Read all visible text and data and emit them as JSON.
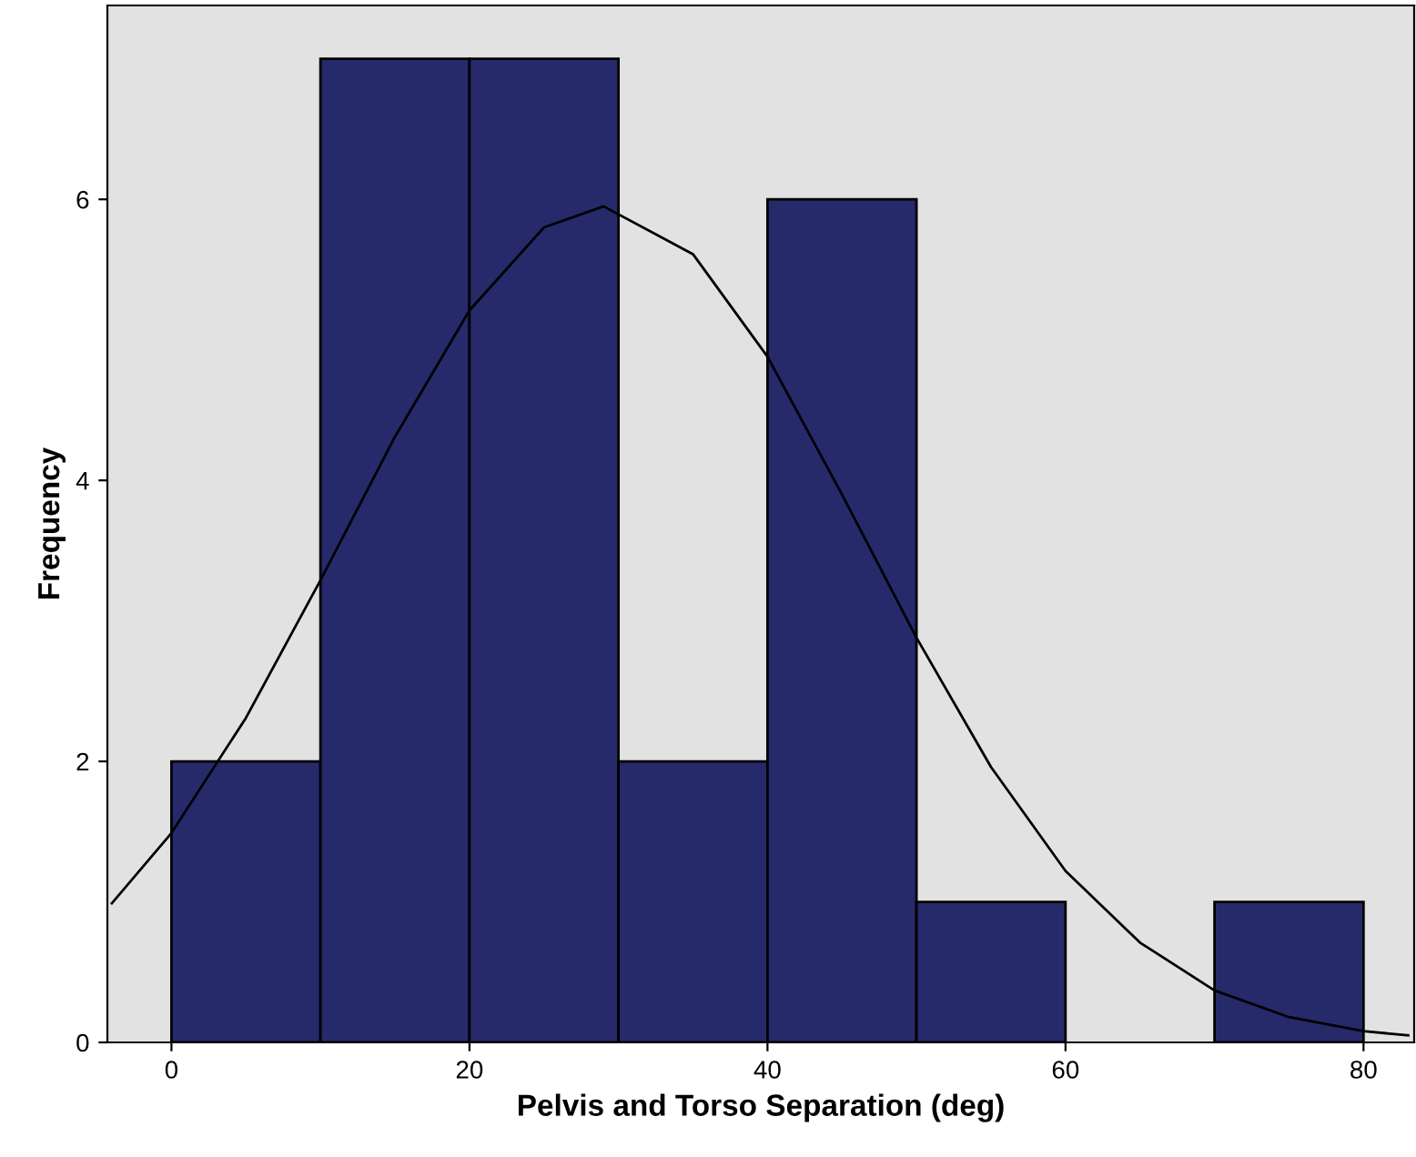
{
  "chart_data": {
    "type": "histogram",
    "xlabel": "Pelvis and Torso Separation (deg)",
    "ylabel": "Frequency",
    "bins": [
      0,
      10,
      20,
      30,
      40,
      50,
      60,
      70,
      80
    ],
    "values": [
      2,
      7,
      7,
      2,
      6,
      1,
      0,
      1
    ],
    "color": "#262a6b",
    "series": [
      {
        "type": "line",
        "color": "#000000",
        "x": [
          -4,
          0,
          5,
          10,
          15,
          20,
          25,
          29,
          35,
          40,
          45,
          50,
          55,
          60,
          65,
          70,
          75,
          80,
          83
        ],
        "values": [
          0.99,
          1.49,
          2.31,
          3.29,
          4.31,
          5.21,
          5.8,
          5.95,
          5.61,
          4.88,
          3.9,
          2.88,
          1.96,
          1.22,
          0.71,
          0.37,
          0.18,
          0.08,
          0.05
        ]
      }
    ],
    "xlim": [
      -4.3,
      83.4
    ],
    "ylim": [
      0,
      7.38
    ],
    "xticks": [
      0,
      20,
      40,
      60,
      80
    ],
    "yticks": [
      0,
      2,
      4,
      6
    ],
    "grid": false,
    "legend": false
  }
}
